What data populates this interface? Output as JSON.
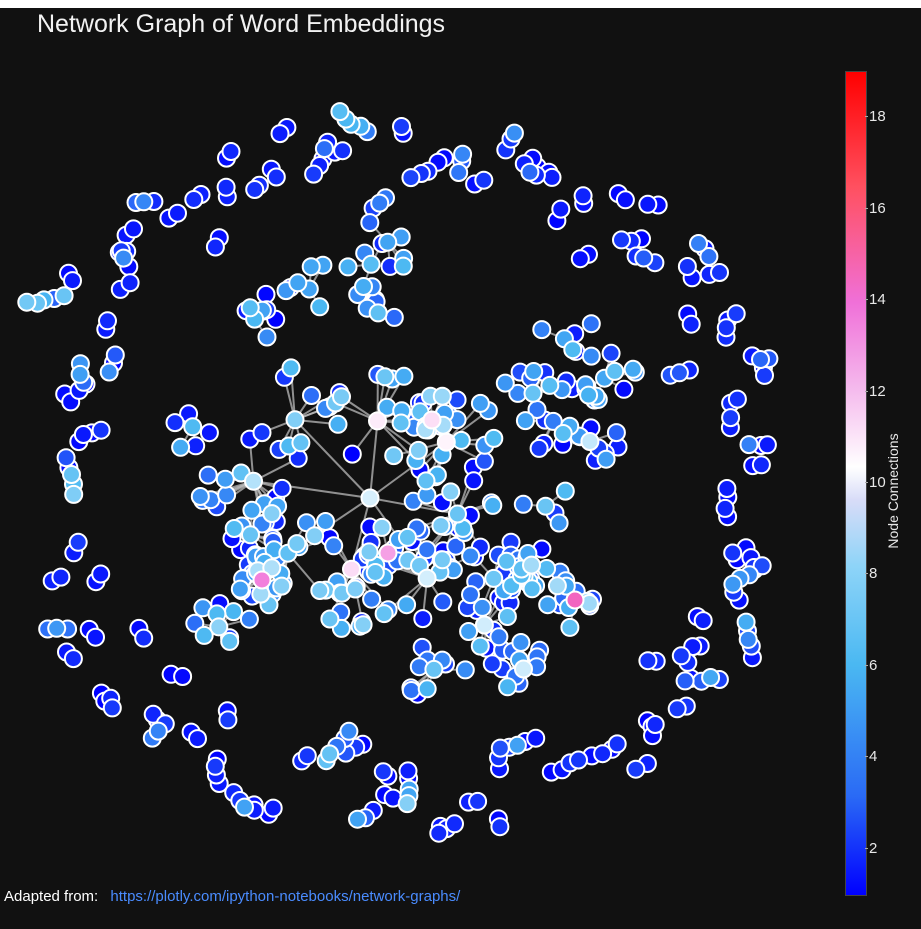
{
  "chart_data": {
    "type": "scatter",
    "subtype": "network-graph",
    "title": "Network Graph of Word Embeddings",
    "colorbar": {
      "title": "Node Connections",
      "tick_labels": [
        "2",
        "4",
        "6",
        "8",
        "10",
        "12",
        "14",
        "16",
        "18"
      ],
      "range": [
        1,
        19
      ],
      "colorscale": [
        "#0000ff",
        "#4ab8f2",
        "#ffffff",
        "#f070d8",
        "#ff0000"
      ]
    },
    "node_count_approx": 500,
    "edge_color": "#bbbbbb",
    "node_outline_color": "#ffffff",
    "axes_visible": false,
    "grid": false
  },
  "footer": {
    "label": "Adapted from:",
    "link_text": "https://plotly.com/ipython-notebooks/network-graphs/"
  },
  "colors": {
    "background": "#111111",
    "link": "#4a8cff"
  }
}
